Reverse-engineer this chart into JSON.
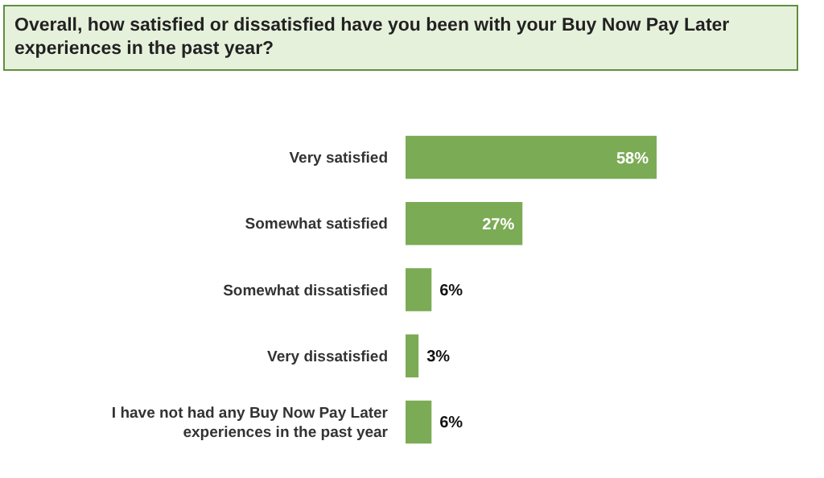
{
  "chart_data": {
    "type": "bar",
    "orientation": "horizontal",
    "title": "Overall, how satisfied or dissatisfied have you been with your Buy Now Pay Later experiences in the past year?",
    "categories": [
      "Very satisfied",
      "Somewhat satisfied",
      "Somewhat dissatisfied",
      "Very dissatisfied",
      "I have not had any Buy Now Pay Later experiences in the past year"
    ],
    "values": [
      58,
      27,
      6,
      3,
      6
    ],
    "value_labels": [
      "58%",
      "27%",
      "6%",
      "3%",
      "6%"
    ],
    "color": "#7bab55"
  }
}
